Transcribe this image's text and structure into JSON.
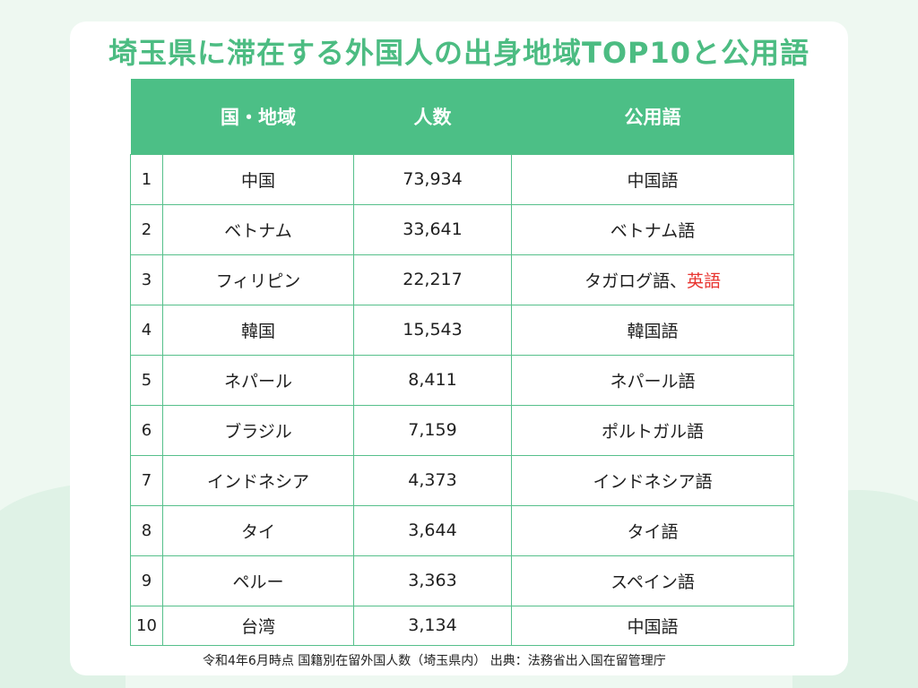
{
  "title": "埼玉県に滞在する外国人の出身地域TOP10と公用語",
  "table": {
    "headers": {
      "rank": "",
      "country": "国・地域",
      "population": "人数",
      "language": "公用語"
    },
    "rows": [
      {
        "rank": "1",
        "country": "中国",
        "population": "73,934",
        "language": "中国語",
        "language_extra": ""
      },
      {
        "rank": "2",
        "country": "ベトナム",
        "population": "33,641",
        "language": "ベトナム語",
        "language_extra": ""
      },
      {
        "rank": "3",
        "country": "フィリピン",
        "population": "22,217",
        "language": "タガログ語、",
        "language_extra": "英語"
      },
      {
        "rank": "4",
        "country": "韓国",
        "population": "15,543",
        "language": "韓国語",
        "language_extra": ""
      },
      {
        "rank": "5",
        "country": "ネパール",
        "population": "8,411",
        "language": "ネパール語",
        "language_extra": ""
      },
      {
        "rank": "6",
        "country": "ブラジル",
        "population": "7,159",
        "language": "ポルトガル語",
        "language_extra": ""
      },
      {
        "rank": "7",
        "country": "インドネシア",
        "population": "4,373",
        "language": "インドネシア語",
        "language_extra": ""
      },
      {
        "rank": "8",
        "country": "タイ",
        "population": "3,644",
        "language": "タイ語",
        "language_extra": ""
      },
      {
        "rank": "9",
        "country": "ペルー",
        "population": "3,363",
        "language": "スペイン語",
        "language_extra": ""
      },
      {
        "rank": "10",
        "country": "台湾",
        "population": "3,134",
        "language": "中国語",
        "language_extra": ""
      }
    ]
  },
  "source": "令和4年6月時点 国籍別在留外国人数（埼玉県内） 出典：法務省出入国在留管理庁",
  "colors": {
    "accent": "#4cbc82",
    "header_bg": "#4cbf86",
    "highlight": "#e8342f",
    "background": "#eef8f1"
  }
}
